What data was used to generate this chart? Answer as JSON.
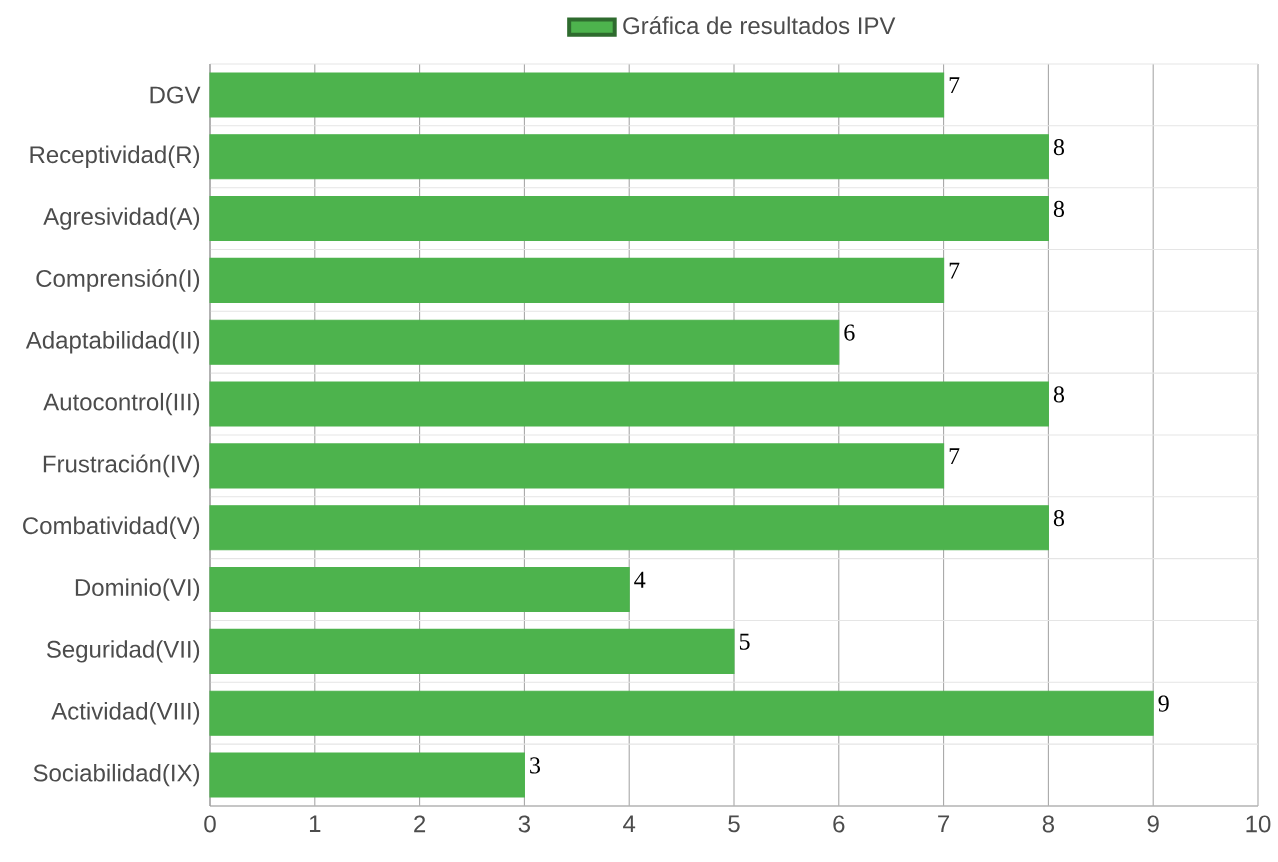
{
  "chart_data": {
    "type": "bar",
    "orientation": "horizontal",
    "categories": [
      "DGV",
      "Receptividad(R)",
      "Agresividad(A)",
      "Comprensión(I)",
      "Adaptabilidad(II)",
      "Autocontrol(III)",
      "Frustración(IV)",
      "Combatividad(V)",
      "Dominio(VI)",
      "Seguridad(VII)",
      "Actividad(VIII)",
      "Sociabilidad(IX)"
    ],
    "series": [
      {
        "name": "Gráfica de resultados IPV",
        "color": "#4db34d",
        "values": [
          7,
          8,
          8,
          7,
          6,
          8,
          7,
          8,
          4,
          5,
          9,
          3
        ]
      }
    ],
    "xlim": [
      0,
      10
    ],
    "xticks": [
      0,
      1,
      2,
      3,
      4,
      5,
      6,
      7,
      8,
      9,
      10
    ],
    "grid": true,
    "legend": "top",
    "data_labels": true
  }
}
